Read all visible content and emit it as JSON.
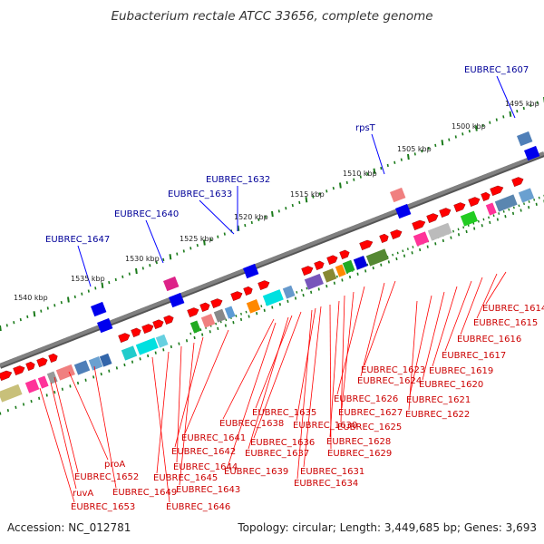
{
  "header": {
    "title": "Eubacterium rectale ATCC 33656, complete genome"
  },
  "footer": {
    "accession": "Accession: NC_012781",
    "topology": "Topology: circular; Length: 3,449,685 bp; Genes: 3,693"
  },
  "colors": {
    "backbone": "#808080",
    "tick": "#1a7a1a",
    "forward_gene": "#ff0000",
    "reverse_gene": "#0000ff",
    "forward_label": "#cc0000",
    "reverse_label": "#000099"
  },
  "kbp_labels": [
    "1495 kbp",
    "1500 kbp",
    "1505 kbp",
    "1510 kbp",
    "1515 kbp",
    "1520 kbp",
    "1525 kbp",
    "1530 kbp",
    "1535 kbp",
    "1540 kbp"
  ],
  "upper_labels": [
    "EUBREC_1607",
    "rpsT",
    "EUBREC_1632",
    "EUBREC_1633",
    "EUBREC_1640",
    "EUBREC_1647"
  ],
  "lower_labels": [
    "EUBREC_1614",
    "EUBREC_1615",
    "EUBREC_1616",
    "EUBREC_1617",
    "EUBREC_1619",
    "EUBREC_1620",
    "EUBREC_1621",
    "EUBREC_1622",
    "EUBREC_1623",
    "EUBREC_1624",
    "EUBREC_1626",
    "EUBREC_1627",
    "EUBREC_1625",
    "EUBREC_1635",
    "EUBREC_1630",
    "EUBREC_1638",
    "EUBREC_1636",
    "EUBREC_1628",
    "EUBREC_1641",
    "EUBREC_1637",
    "EUBREC_1629",
    "EUBREC_1642",
    "EUBREC_1639",
    "EUBREC_1631",
    "EUBREC_1644",
    "EUBREC_1634",
    "proA",
    "EUBREC_1652",
    "EUBREC_1645",
    "EUBREC_1643",
    "ruvA",
    "EUBREC_1649",
    "EUBREC_1653",
    "EUBREC_1646"
  ]
}
